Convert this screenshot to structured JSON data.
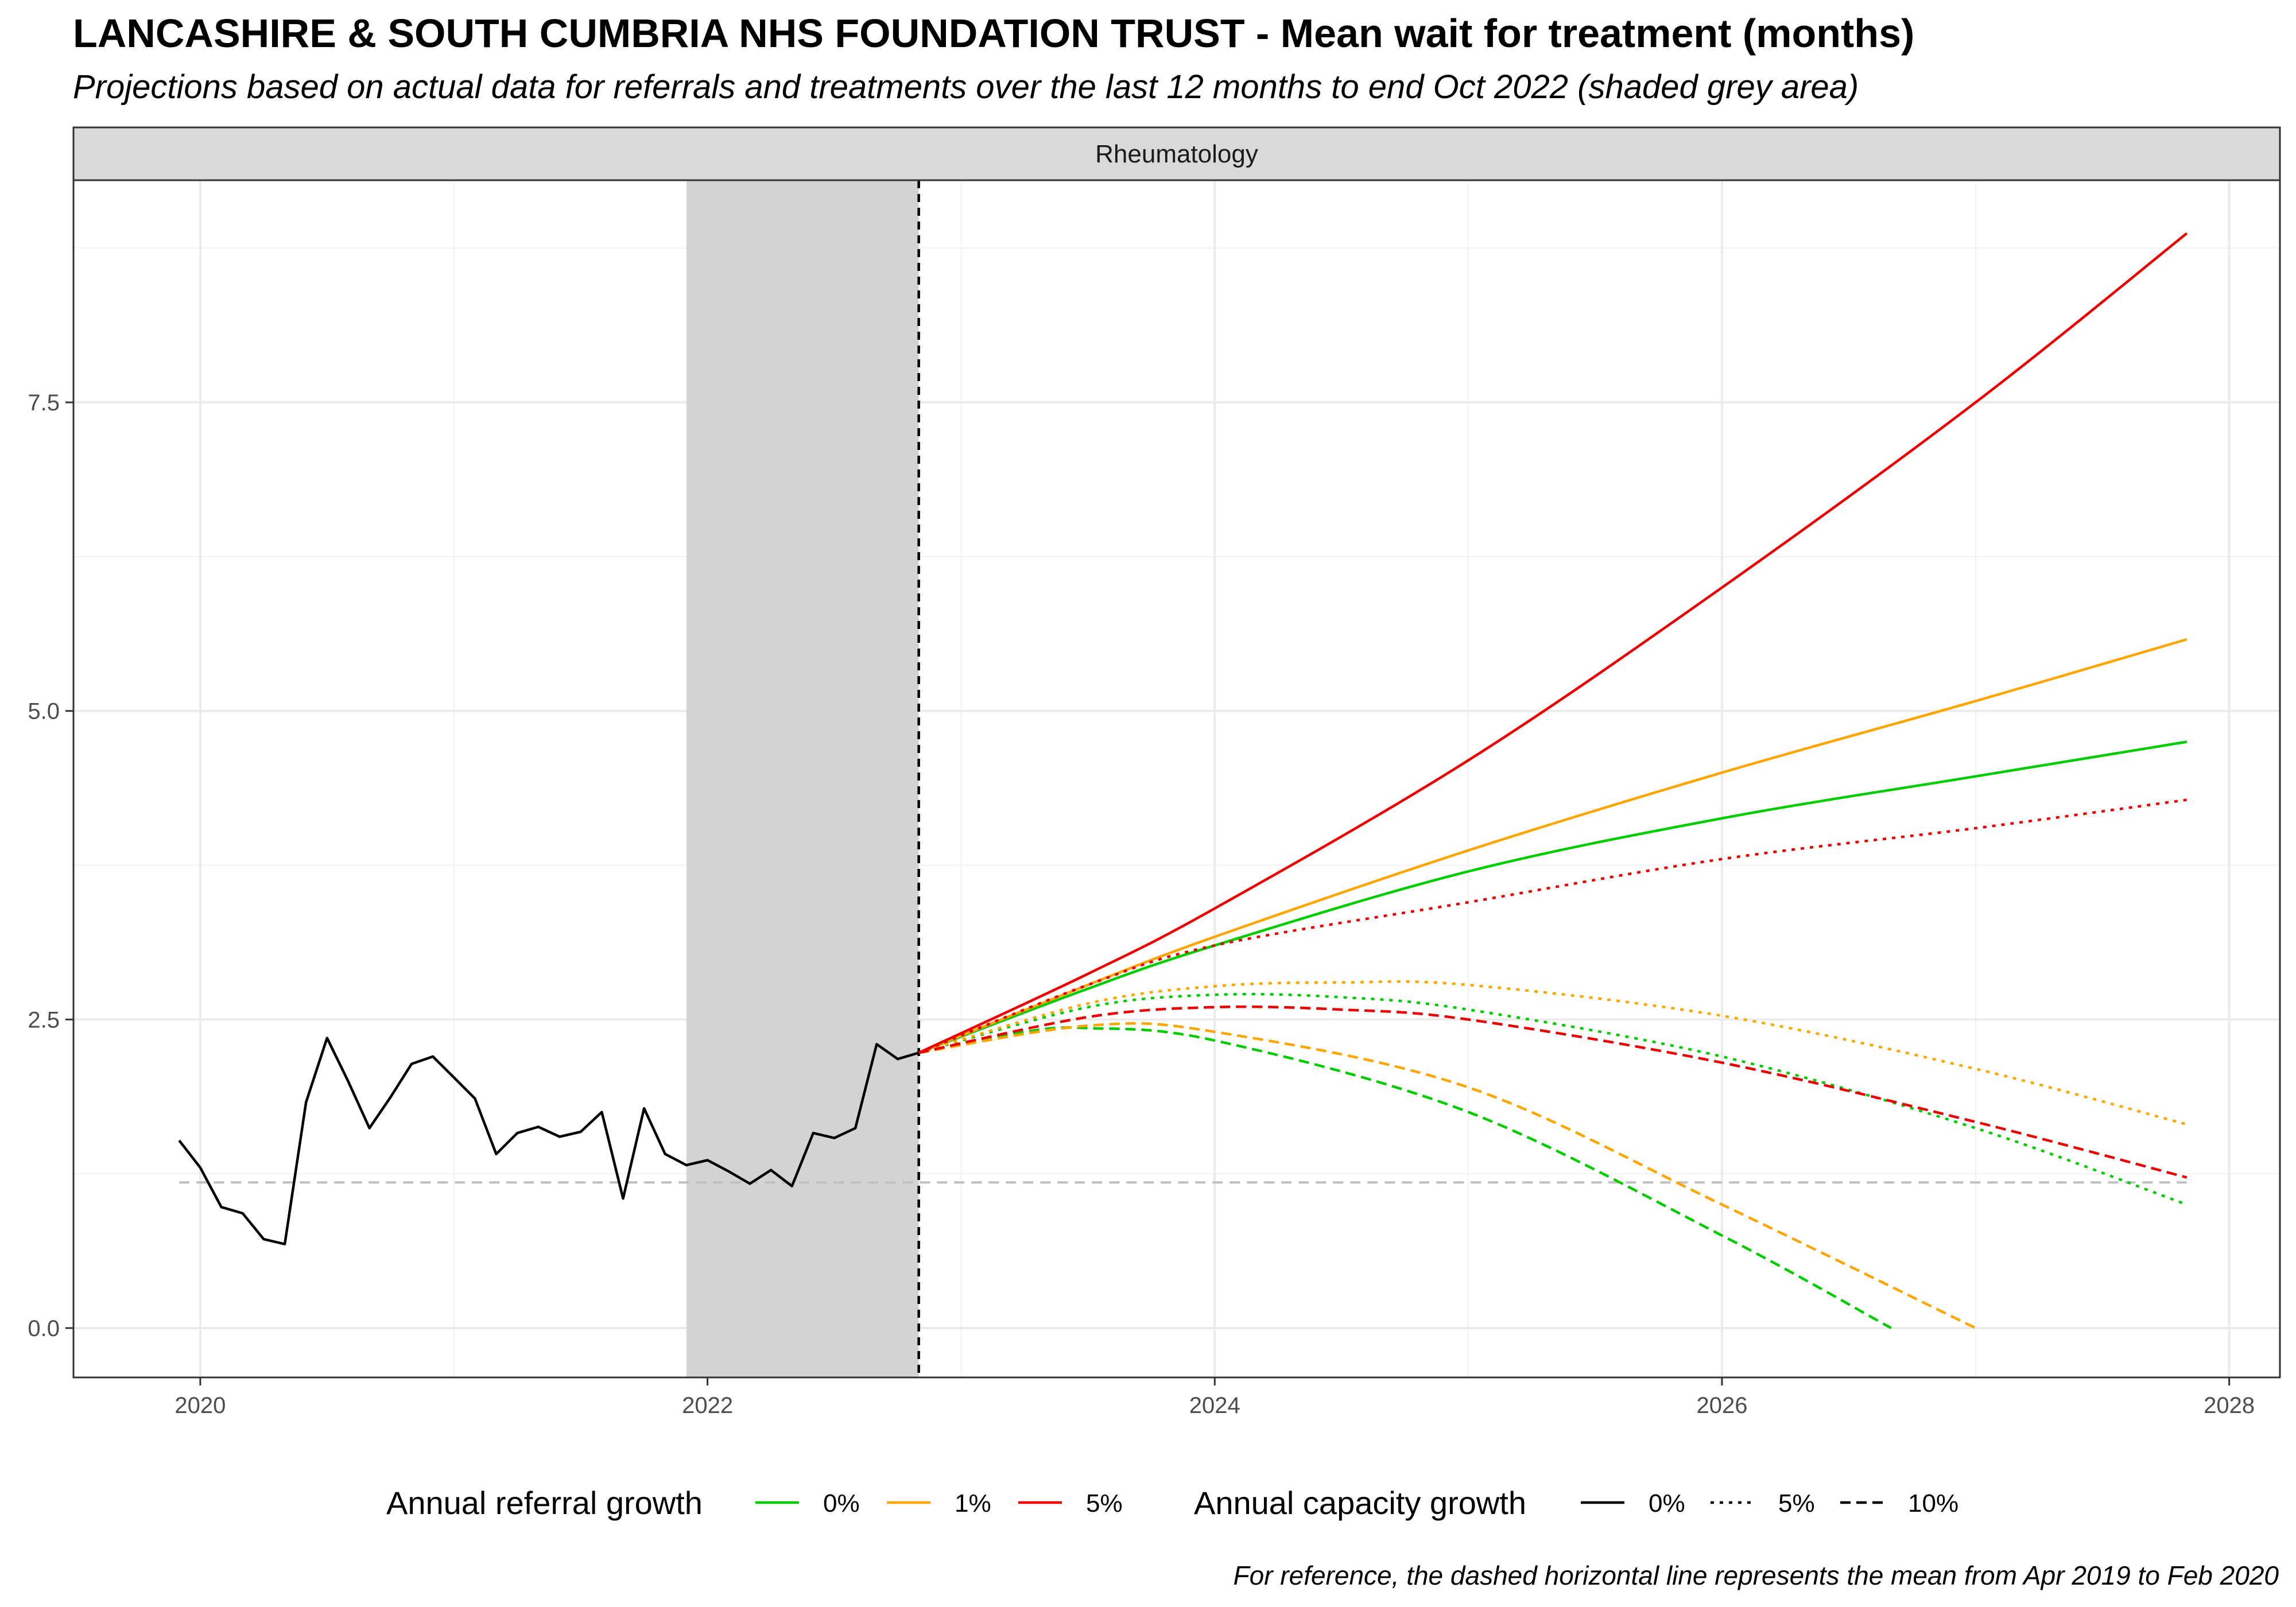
{
  "title": "LANCASHIRE & SOUTH CUMBRIA NHS FOUNDATION TRUST - Mean wait for treatment (months)",
  "subtitle": "Projections based on actual data for referrals and treatments over the last 12 months to end Oct 2022 (shaded grey area)",
  "caption": "For reference, the dashed horizontal line represents the mean from Apr 2019 to Feb 2020",
  "chart_data": {
    "type": "line",
    "facet": "Rheumatology",
    "xlabel": "",
    "ylabel": "",
    "xlim": [
      2019.5,
      2028.2
    ],
    "ylim": [
      -0.4,
      9.3
    ],
    "x_ticks": [
      2020,
      2022,
      2024,
      2026,
      2028
    ],
    "y_ticks": [
      0.0,
      2.5,
      5.0,
      7.5
    ],
    "y_tick_labels": [
      "0.0",
      "2.5",
      "5.0",
      "7.5"
    ],
    "grid": true,
    "shaded_period": [
      2021.917,
      2022.833
    ],
    "projection_start_line": 2022.833,
    "reference_line": 1.18,
    "legend_position": "bottom",
    "colors": {
      "0%": "#00cc00",
      "1%": "#ffa500",
      "5%": "#ee0000",
      "actual": "#000000",
      "reference": "#bfbfbf",
      "shade": "#d3d3d3"
    },
    "legend": {
      "referral_title": "Annual referral growth",
      "referral_items": [
        {
          "label": "0%",
          "color": "#00cc00"
        },
        {
          "label": "1%",
          "color": "#ffa500"
        },
        {
          "label": "5%",
          "color": "#ee0000"
        }
      ],
      "capacity_title": "Annual capacity growth",
      "capacity_items": [
        {
          "label": "0%",
          "dash": "solid"
        },
        {
          "label": "5%",
          "dash": "dotted"
        },
        {
          "label": "10%",
          "dash": "dashed"
        }
      ]
    },
    "actual_series": {
      "x": [
        2019.917,
        2020.0,
        2020.083,
        2020.167,
        2020.25,
        2020.333,
        2020.417,
        2020.5,
        2020.583,
        2020.667,
        2020.75,
        2020.833,
        2020.917,
        2021.0,
        2021.083,
        2021.167,
        2021.25,
        2021.333,
        2021.417,
        2021.5,
        2021.583,
        2021.667,
        2021.75,
        2021.833,
        2021.917,
        2022.0,
        2022.083,
        2022.167,
        2022.25,
        2022.333,
        2022.417,
        2022.5,
        2022.583,
        2022.667,
        2022.75,
        2022.833
      ],
      "y": [
        1.52,
        1.3,
        0.98,
        0.93,
        0.72,
        0.68,
        1.83,
        2.35,
        2.0,
        1.62,
        1.87,
        2.14,
        2.2,
        2.03,
        1.86,
        1.41,
        1.58,
        1.63,
        1.55,
        1.59,
        1.75,
        1.05,
        1.78,
        1.41,
        1.32,
        1.36,
        1.27,
        1.17,
        1.28,
        1.15,
        1.58,
        1.54,
        1.62,
        2.3,
        2.18,
        2.23
      ]
    },
    "series": [
      {
        "referral_growth": "0%",
        "capacity_growth": "0%",
        "x": [
          2022.833,
          2023.5,
          2024.0,
          2025.0,
          2026.0,
          2027.0,
          2027.833
        ],
        "y": [
          2.23,
          2.75,
          3.1,
          3.7,
          4.13,
          4.47,
          4.75
        ]
      },
      {
        "referral_growth": "1%",
        "capacity_growth": "0%",
        "x": [
          2022.833,
          2023.5,
          2024.0,
          2025.0,
          2026.0,
          2027.0,
          2027.833
        ],
        "y": [
          2.23,
          2.78,
          3.17,
          3.87,
          4.5,
          5.08,
          5.58
        ]
      },
      {
        "referral_growth": "5%",
        "capacity_growth": "0%",
        "x": [
          2022.833,
          2023.5,
          2024.0,
          2025.0,
          2026.0,
          2027.0,
          2027.833
        ],
        "y": [
          2.23,
          2.87,
          3.4,
          4.6,
          6.0,
          7.5,
          8.87
        ]
      },
      {
        "referral_growth": "0%",
        "capacity_growth": "5%",
        "x": [
          2022.833,
          2023.5,
          2024.0,
          2024.5,
          2025.0,
          2026.0,
          2027.0,
          2027.833
        ],
        "y": [
          2.23,
          2.6,
          2.7,
          2.68,
          2.58,
          2.2,
          1.62,
          1.0
        ]
      },
      {
        "referral_growth": "1%",
        "capacity_growth": "5%",
        "x": [
          2022.833,
          2023.5,
          2024.0,
          2024.5,
          2025.0,
          2026.0,
          2027.0,
          2027.833
        ],
        "y": [
          2.23,
          2.63,
          2.77,
          2.8,
          2.78,
          2.53,
          2.1,
          1.65
        ]
      },
      {
        "referral_growth": "5%",
        "capacity_growth": "5%",
        "x": [
          2022.833,
          2023.5,
          2024.0,
          2025.0,
          2026.0,
          2027.0,
          2027.833
        ],
        "y": [
          2.23,
          2.78,
          3.1,
          3.45,
          3.8,
          4.05,
          4.28
        ]
      },
      {
        "referral_growth": "0%",
        "capacity_growth": "10%",
        "x": [
          2022.833,
          2023.25,
          2023.5,
          2024.0,
          2025.0,
          2026.0,
          2026.667
        ],
        "y": [
          2.23,
          2.4,
          2.43,
          2.33,
          1.75,
          0.75,
          0.0
        ]
      },
      {
        "referral_growth": "1%",
        "capacity_growth": "10%",
        "x": [
          2022.833,
          2023.5,
          2024.0,
          2025.0,
          2026.0,
          2027.0
        ],
        "y": [
          2.23,
          2.45,
          2.4,
          1.95,
          1.0,
          0.0
        ]
      },
      {
        "referral_growth": "5%",
        "capacity_growth": "10%",
        "x": [
          2022.833,
          2023.5,
          2024.0,
          2024.5,
          2025.0,
          2026.0,
          2027.0,
          2027.833
        ],
        "y": [
          2.23,
          2.52,
          2.6,
          2.58,
          2.5,
          2.15,
          1.67,
          1.22
        ]
      }
    ]
  }
}
